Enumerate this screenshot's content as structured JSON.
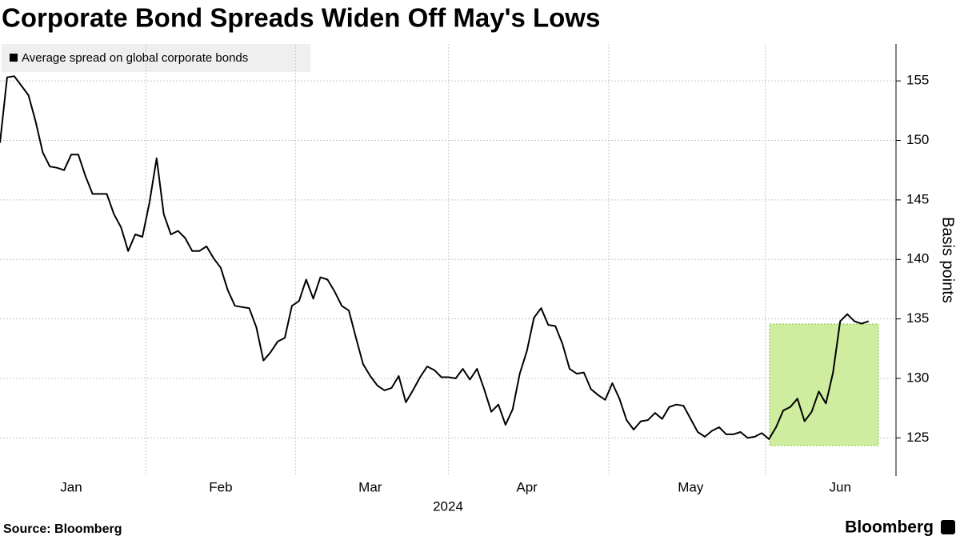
{
  "chart_data": {
    "type": "line",
    "title": "Corporate Bond Spreads Widen Off May's Lows",
    "x_label": "2024",
    "y_label": "Basis points",
    "source": "Source: Bloomberg",
    "brand": "Bloomberg",
    "categories": [
      null,
      null,
      null,
      null,
      null,
      null,
      null,
      null,
      null,
      null,
      "Jan",
      null,
      null,
      null,
      null,
      null,
      null,
      null,
      null,
      null,
      null,
      null,
      null,
      null,
      null,
      null,
      null,
      null,
      null,
      null,
      null,
      "Feb",
      null,
      null,
      null,
      null,
      null,
      null,
      null,
      null,
      null,
      null,
      null,
      null,
      null,
      null,
      null,
      null,
      null,
      null,
      null,
      null,
      "Mar",
      null,
      null,
      null,
      null,
      null,
      null,
      null,
      null,
      null,
      null,
      null,
      null,
      null,
      null,
      null,
      null,
      null,
      null,
      null,
      null,
      null,
      "Apr",
      null,
      null,
      null,
      null,
      null,
      null,
      null,
      null,
      null,
      null,
      null,
      null,
      null,
      null,
      null,
      null,
      null,
      null,
      null,
      null,
      null,
      null,
      "May",
      null,
      null,
      null,
      null,
      null,
      null,
      null,
      null,
      null,
      null,
      null,
      null,
      null,
      null,
      null,
      null,
      null,
      null,
      null,
      null,
      "Jun",
      null,
      null,
      null,
      null
    ],
    "series": [
      {
        "name": "Average spread on global corporate bonds",
        "color": "#000000",
        "values": [
          149.8,
          155.3,
          155.4,
          154.6,
          153.8,
          151.6,
          149.0,
          147.8,
          147.7,
          147.5,
          148.8,
          148.8,
          147.0,
          145.5,
          145.5,
          145.5,
          143.8,
          142.7,
          140.7,
          142.1,
          141.9,
          144.8,
          148.5,
          143.8,
          142.1,
          142.4,
          141.8,
          140.7,
          140.7,
          141.1,
          140.1,
          139.3,
          137.4,
          136.1,
          136.0,
          135.9,
          134.3,
          131.5,
          132.2,
          133.1,
          133.4,
          136.1,
          136.5,
          138.3,
          136.7,
          138.5,
          138.3,
          137.3,
          136.1,
          135.7,
          133.4,
          131.2,
          130.2,
          129.4,
          129.0,
          129.2,
          130.2,
          128.0,
          129.0,
          130.1,
          131.0,
          130.7,
          130.1,
          130.1,
          130.0,
          130.8,
          129.9,
          130.8,
          129.1,
          127.2,
          127.8,
          126.1,
          127.4,
          130.4,
          132.3,
          135.1,
          135.9,
          134.5,
          134.4,
          132.9,
          130.8,
          130.4,
          130.5,
          129.1,
          128.6,
          128.2,
          129.6,
          128.3,
          126.5,
          125.7,
          126.4,
          126.5,
          127.1,
          126.6,
          127.6,
          127.8,
          127.7,
          126.6,
          125.5,
          125.1,
          125.6,
          125.9,
          125.3,
          125.3,
          125.5,
          125.0,
          125.1,
          125.4,
          124.9,
          125.9,
          127.3,
          127.6,
          128.3,
          126.4,
          127.2,
          128.9,
          127.9,
          130.5,
          134.8,
          135.4,
          134.8,
          134.6,
          134.8
        ]
      }
    ],
    "ylim": [
      121.8,
      158.1
    ],
    "yticks": [
      125,
      130,
      135,
      140,
      145,
      150,
      155
    ],
    "grid": true
  }
}
